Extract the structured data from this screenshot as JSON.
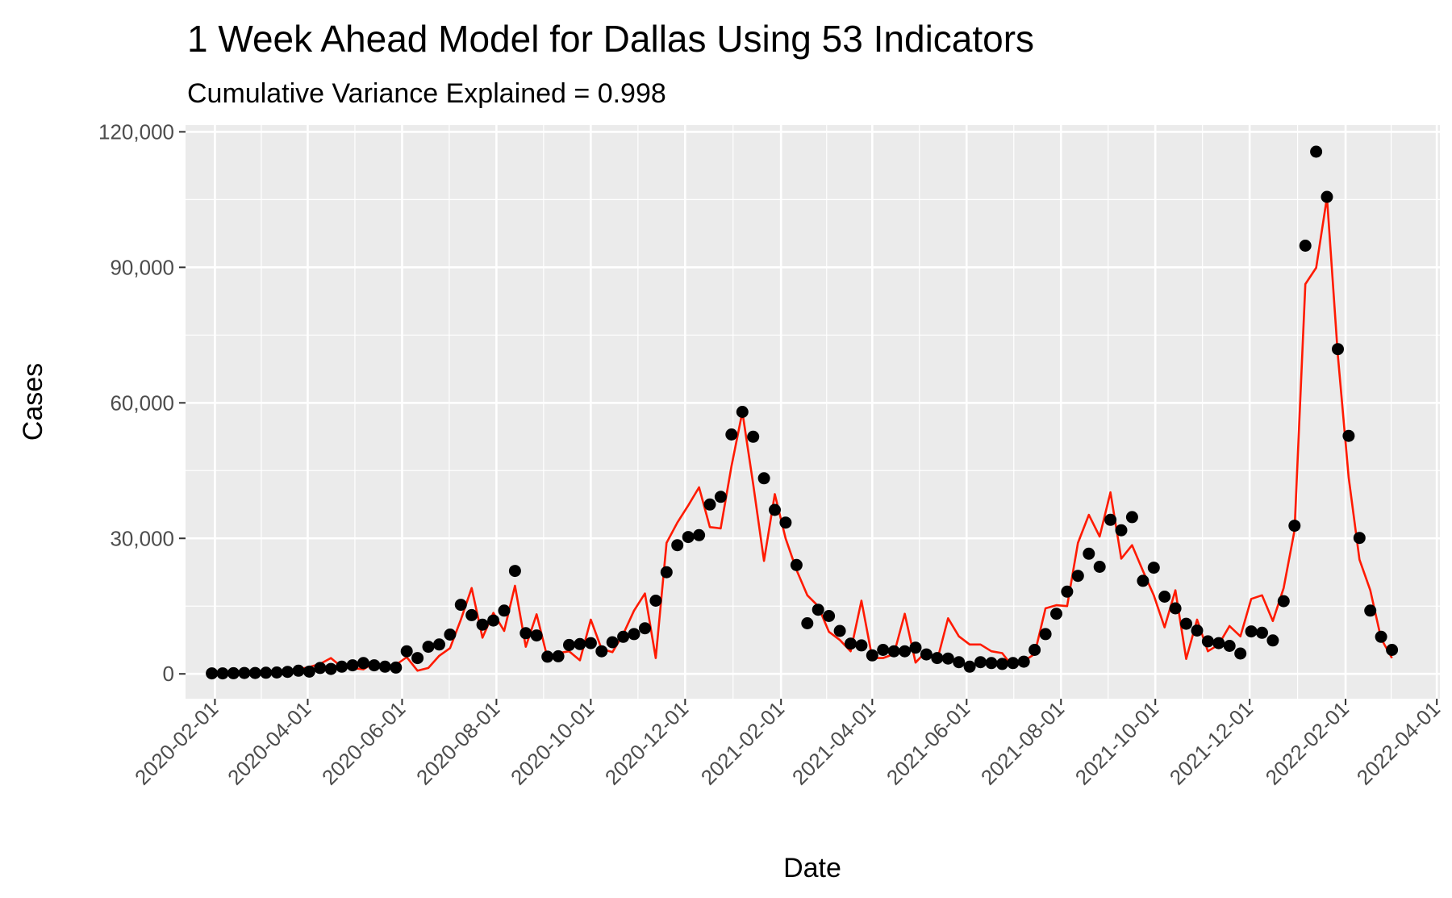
{
  "chart_data": {
    "type": "line",
    "title": "1 Week Ahead Model for Dallas Using 53 Indicators",
    "subtitle": "Cumulative Variance Explained = 0.998",
    "xlabel": "Date",
    "ylabel": "Cases",
    "xlim": [
      "2020-01-13",
      "2022-04-03"
    ],
    "ylim": [
      -5500,
      121500
    ],
    "grid": true,
    "legend": "none",
    "x_ticks": [
      "2020-02-01",
      "2020-04-01",
      "2020-06-01",
      "2020-08-01",
      "2020-10-01",
      "2020-12-01",
      "2021-02-01",
      "2021-04-01",
      "2021-06-01",
      "2021-08-01",
      "2021-10-01",
      "2021-12-01",
      "2022-02-01",
      "2022-04-01"
    ],
    "y_ticks": [
      0,
      30000,
      60000,
      90000,
      120000
    ],
    "y_tick_labels": [
      "0",
      "30,000",
      "60,000",
      "90,000",
      "120,000"
    ],
    "colors": {
      "panel": "#ebebeb",
      "grid": "#ffffff",
      "axis_ticks": "#333333",
      "observed": "#000000",
      "predicted": "#ff1a00"
    },
    "series": [
      {
        "kind": "points",
        "dates": [
          "2020-01-30",
          "2020-02-06",
          "2020-02-13",
          "2020-02-20",
          "2020-02-27",
          "2020-03-05",
          "2020-03-12",
          "2020-03-19",
          "2020-03-26",
          "2020-04-02",
          "2020-04-09",
          "2020-04-16",
          "2020-04-23",
          "2020-04-30",
          "2020-05-07",
          "2020-05-14",
          "2020-05-21",
          "2020-05-28",
          "2020-06-04",
          "2020-06-11",
          "2020-06-18",
          "2020-06-25",
          "2020-07-02",
          "2020-07-09",
          "2020-07-16",
          "2020-07-23",
          "2020-07-30",
          "2020-08-06",
          "2020-08-13",
          "2020-08-20",
          "2020-08-27",
          "2020-09-03",
          "2020-09-10",
          "2020-09-17",
          "2020-09-24",
          "2020-10-01",
          "2020-10-08",
          "2020-10-15",
          "2020-10-22",
          "2020-10-29",
          "2020-11-05",
          "2020-11-12",
          "2020-11-19",
          "2020-11-26",
          "2020-12-03",
          "2020-12-10",
          "2020-12-17",
          "2020-12-24",
          "2020-12-31",
          "2021-01-07",
          "2021-01-14",
          "2021-01-21",
          "2021-01-28",
          "2021-02-04",
          "2021-02-11",
          "2021-02-18",
          "2021-02-25",
          "2021-03-04",
          "2021-03-11",
          "2021-03-18",
          "2021-03-25",
          "2021-04-01",
          "2021-04-08",
          "2021-04-15",
          "2021-04-22",
          "2021-04-29",
          "2021-05-06",
          "2021-05-13",
          "2021-05-20",
          "2021-05-27",
          "2021-06-03",
          "2021-06-10",
          "2021-06-17",
          "2021-06-24",
          "2021-07-01",
          "2021-07-08",
          "2021-07-15",
          "2021-07-22",
          "2021-07-29",
          "2021-08-05",
          "2021-08-12",
          "2021-08-19",
          "2021-08-26",
          "2021-09-02",
          "2021-09-09",
          "2021-09-16",
          "2021-09-23",
          "2021-09-30",
          "2021-10-07",
          "2021-10-14",
          "2021-10-21",
          "2021-10-28",
          "2021-11-04",
          "2021-11-11",
          "2021-11-18",
          "2021-11-25",
          "2021-12-02",
          "2021-12-09",
          "2021-12-16",
          "2021-12-23",
          "2021-12-30",
          "2022-01-06",
          "2022-01-13",
          "2022-01-20",
          "2022-01-27",
          "2022-02-03",
          "2022-02-10",
          "2022-02-17",
          "2022-02-24",
          "2022-03-03"
        ],
        "values": [
          100,
          100,
          150,
          200,
          200,
          250,
          300,
          450,
          700,
          500,
          1300,
          1100,
          1600,
          1900,
          2400,
          1900,
          1600,
          1400,
          5000,
          3500,
          6000,
          6500,
          8700,
          15300,
          13000,
          10900,
          11800,
          14000,
          22800,
          9000,
          8500,
          3800,
          3900,
          6400,
          6600,
          6800,
          5000,
          7000,
          8200,
          8800,
          10100,
          16200,
          22500,
          28500,
          30300,
          30700,
          37500,
          39200,
          53000,
          58000,
          52500,
          43300,
          36300,
          33500,
          24100,
          11200,
          14200,
          12800,
          9500,
          6700,
          6300,
          4100,
          5300,
          5000,
          5000,
          5800,
          4300,
          3500,
          3400,
          2600,
          1600,
          2600,
          2400,
          2200,
          2400,
          2700,
          5300,
          8800,
          13300,
          18200,
          21700,
          26600,
          23700,
          34100,
          31800,
          34700,
          20600,
          23500,
          17100,
          14500,
          11100,
          9600,
          7200,
          6800,
          6200,
          4500,
          9400,
          9100,
          7400,
          16100,
          32800,
          94800,
          115600,
          105600,
          71900,
          52700,
          30100,
          14000,
          8200,
          5300
        ]
      },
      {
        "kind": "line",
        "dates": [
          "2020-01-30",
          "2020-02-06",
          "2020-02-13",
          "2020-02-20",
          "2020-02-27",
          "2020-03-05",
          "2020-03-12",
          "2020-03-19",
          "2020-03-26",
          "2020-04-02",
          "2020-04-09",
          "2020-04-16",
          "2020-04-23",
          "2020-04-30",
          "2020-05-07",
          "2020-05-14",
          "2020-05-21",
          "2020-05-28",
          "2020-06-04",
          "2020-06-11",
          "2020-06-18",
          "2020-06-25",
          "2020-07-02",
          "2020-07-09",
          "2020-07-16",
          "2020-07-23",
          "2020-07-30",
          "2020-08-06",
          "2020-08-13",
          "2020-08-20",
          "2020-08-27",
          "2020-09-03",
          "2020-09-10",
          "2020-09-17",
          "2020-09-24",
          "2020-10-01",
          "2020-10-08",
          "2020-10-15",
          "2020-10-22",
          "2020-10-29",
          "2020-11-05",
          "2020-11-12",
          "2020-11-19",
          "2020-11-26",
          "2020-12-03",
          "2020-12-10",
          "2020-12-17",
          "2020-12-24",
          "2020-12-31",
          "2021-01-07",
          "2021-01-14",
          "2021-01-21",
          "2021-01-28",
          "2021-02-04",
          "2021-02-11",
          "2021-02-18",
          "2021-02-25",
          "2021-03-04",
          "2021-03-11",
          "2021-03-18",
          "2021-03-25",
          "2021-04-01",
          "2021-04-08",
          "2021-04-15",
          "2021-04-22",
          "2021-04-29",
          "2021-05-06",
          "2021-05-13",
          "2021-05-20",
          "2021-05-27",
          "2021-06-03",
          "2021-06-10",
          "2021-06-17",
          "2021-06-24",
          "2021-07-01",
          "2021-07-08",
          "2021-07-15",
          "2021-07-22",
          "2021-07-29",
          "2021-08-05",
          "2021-08-12",
          "2021-08-19",
          "2021-08-26",
          "2021-09-02",
          "2021-09-09",
          "2021-09-16",
          "2021-09-23",
          "2021-09-30",
          "2021-10-07",
          "2021-10-14",
          "2021-10-21",
          "2021-10-28",
          "2021-11-04",
          "2021-11-11",
          "2021-11-18",
          "2021-11-25",
          "2021-12-02",
          "2021-12-09",
          "2021-12-16",
          "2021-12-23",
          "2021-12-30",
          "2022-01-06",
          "2022-01-13",
          "2022-01-20",
          "2022-01-27",
          "2022-02-03",
          "2022-02-10",
          "2022-02-17",
          "2022-02-24",
          "2022-03-03"
        ],
        "values": [
          0,
          100,
          100,
          100,
          200,
          200,
          300,
          500,
          1000,
          1500,
          2200,
          3500,
          1500,
          1300,
          1000,
          2500,
          1500,
          2000,
          3700,
          700,
          1300,
          4000,
          5700,
          12000,
          19000,
          8000,
          13500,
          9500,
          19500,
          6000,
          13200,
          3500,
          4600,
          5000,
          3000,
          12000,
          5500,
          4800,
          8800,
          14000,
          17800,
          3500,
          29000,
          33500,
          37300,
          41300,
          32500,
          32200,
          46000,
          58000,
          42000,
          25000,
          39800,
          30000,
          23000,
          17400,
          15000,
          9300,
          7500,
          5000,
          16200,
          3500,
          3500,
          4400,
          13300,
          2500,
          5000,
          3000,
          12300,
          8300,
          6500,
          6500,
          5000,
          4600,
          1500,
          2800,
          4400,
          14500,
          15200,
          15000,
          29000,
          35200,
          30400,
          40200,
          25500,
          28500,
          22800,
          17400,
          10300,
          18500,
          3300,
          12000,
          5000,
          6500,
          10600,
          8300,
          16600,
          17400,
          11700,
          19000,
          31800,
          86300,
          89900,
          105500,
          70500,
          43500,
          25300,
          18500,
          7800,
          3500
        ]
      }
    ]
  }
}
